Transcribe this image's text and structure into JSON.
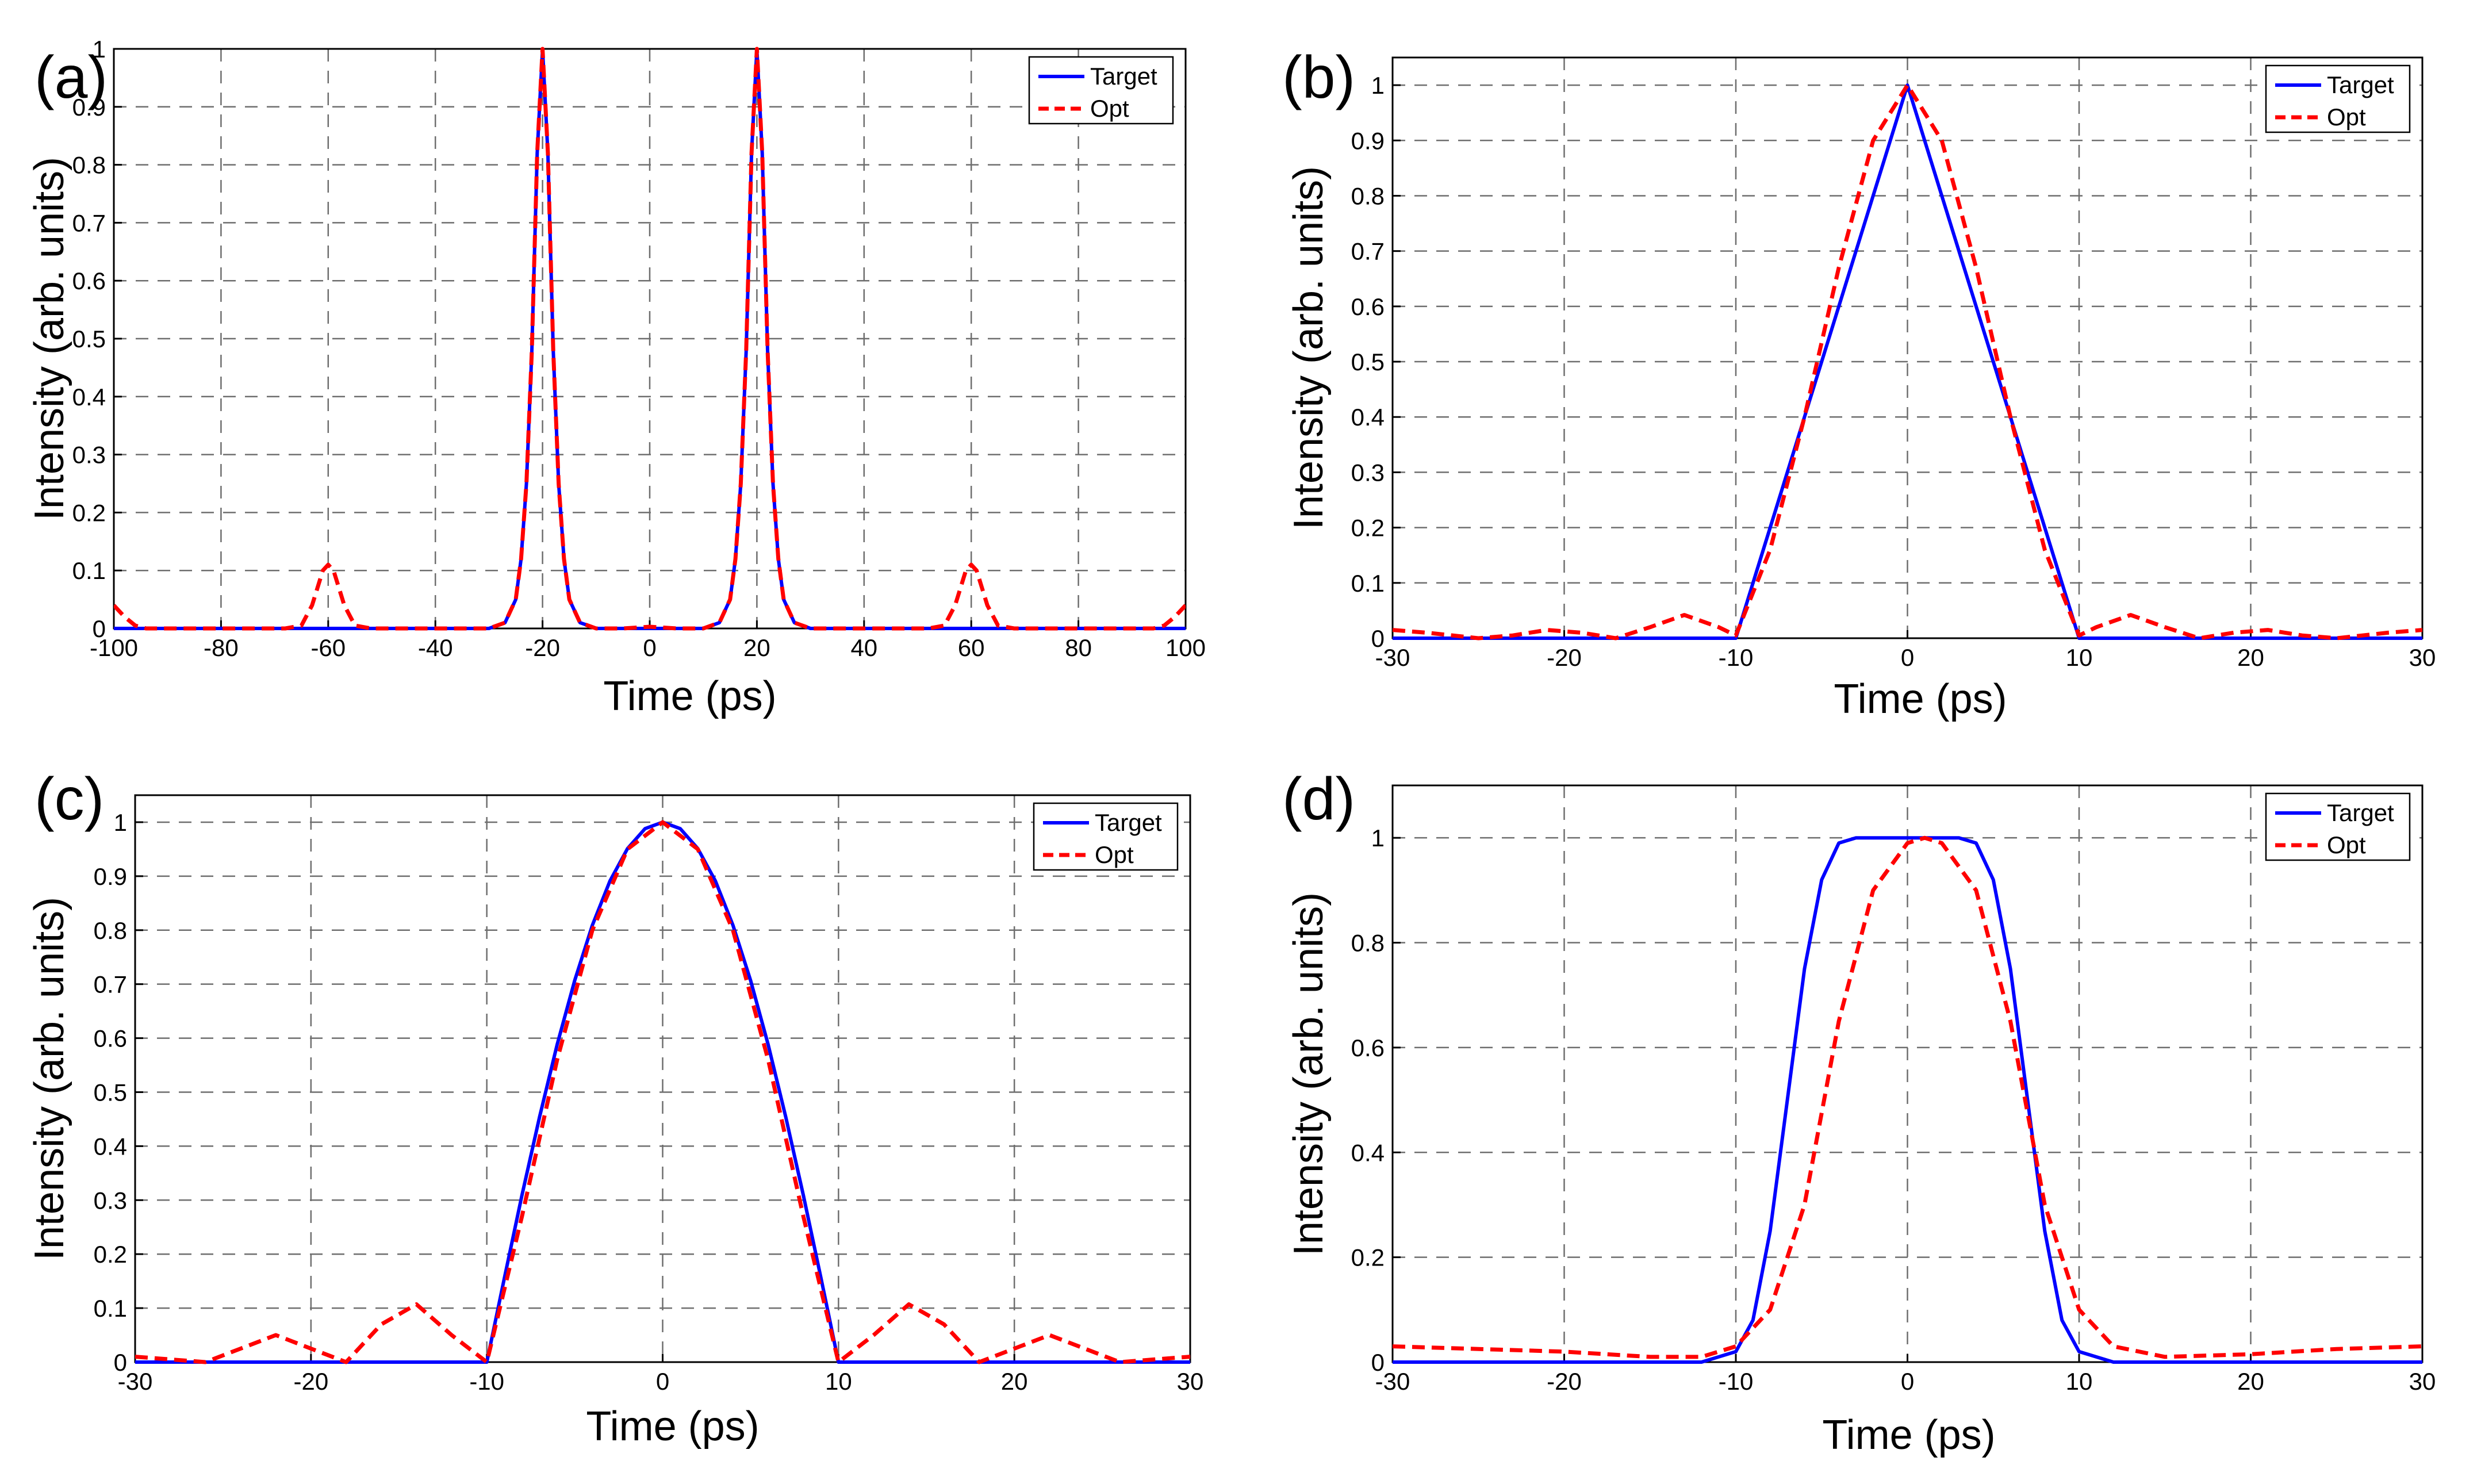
{
  "chart_data": [
    {
      "panel_label": "(a)",
      "type": "line",
      "title": "",
      "xlabel": "Time (ps)",
      "ylabel": "Intensity (arb. units)",
      "xlim": [
        -100,
        100
      ],
      "ylim": [
        0,
        1
      ],
      "xticks": [
        -100,
        -80,
        -60,
        -40,
        -20,
        0,
        20,
        40,
        60,
        80,
        100
      ],
      "xtick_labels": [
        "-100",
        "-80",
        "-60",
        "-40",
        "-20",
        "0",
        "20",
        "40",
        "60",
        "80",
        "100"
      ],
      "yticks": [
        0,
        0.1,
        0.2,
        0.3,
        0.4,
        0.5,
        0.6,
        0.7,
        0.8,
        0.9,
        1
      ],
      "ytick_labels": [
        "0",
        "0.1",
        "0.2",
        "0.3",
        "0.4",
        "0.5",
        "0.6",
        "0.7",
        "0.8",
        "0.9",
        "1"
      ],
      "grid": true,
      "legend_position": "top-right",
      "series": [
        {
          "name": "Target",
          "color": "#0000ff",
          "style": "solid",
          "x": [
            -100,
            -30,
            -27,
            -25,
            -24,
            -23,
            -22,
            -21,
            -20,
            -19,
            -18,
            -17,
            -16,
            -15,
            -13,
            -10,
            10,
            13,
            15,
            16,
            17,
            18,
            19,
            20,
            21,
            22,
            23,
            24,
            25,
            27,
            30,
            100
          ],
          "y": [
            0,
            0,
            0.01,
            0.05,
            0.12,
            0.25,
            0.48,
            0.82,
            1,
            0.82,
            0.48,
            0.25,
            0.12,
            0.05,
            0.01,
            0,
            0,
            0.01,
            0.05,
            0.12,
            0.25,
            0.48,
            0.82,
            1,
            0.82,
            0.48,
            0.25,
            0.12,
            0.05,
            0.01,
            0,
            0
          ]
        },
        {
          "name": "Opt",
          "color": "#ff0000",
          "style": "dashed",
          "x": [
            -100,
            -98,
            -96,
            -94,
            -90,
            -80,
            -68,
            -65,
            -63,
            -61,
            -60,
            -59,
            -57,
            -55,
            -52,
            -45,
            -30,
            -27,
            -25,
            -24,
            -23,
            -22,
            -21,
            -20,
            -19,
            -18,
            -17,
            -16,
            -15,
            -13,
            -10,
            -5,
            0,
            5,
            10,
            13,
            15,
            16,
            17,
            18,
            19,
            20,
            21,
            22,
            23,
            24,
            25,
            27,
            30,
            45,
            52,
            55,
            57,
            59,
            60,
            61,
            63,
            65,
            68,
            80,
            90,
            94,
            96,
            98,
            100
          ],
          "y": [
            0.04,
            0.02,
            0.005,
            0,
            0,
            0,
            0,
            0.005,
            0.04,
            0.1,
            0.11,
            0.1,
            0.04,
            0.005,
            0,
            0,
            0,
            0.01,
            0.05,
            0.12,
            0.25,
            0.48,
            0.82,
            1,
            0.82,
            0.48,
            0.25,
            0.12,
            0.05,
            0.01,
            0,
            0,
            0.003,
            0,
            0,
            0.01,
            0.05,
            0.12,
            0.25,
            0.48,
            0.82,
            1,
            0.82,
            0.48,
            0.25,
            0.12,
            0.05,
            0.01,
            0,
            0,
            0,
            0.005,
            0.04,
            0.1,
            0.11,
            0.1,
            0.04,
            0.005,
            0,
            0,
            0,
            0,
            0.005,
            0.02,
            0.04
          ]
        }
      ]
    },
    {
      "panel_label": "(b)",
      "type": "line",
      "title": "",
      "xlabel": "Time (ps)",
      "ylabel": "Intensity (arb. units)",
      "xlim": [
        -30,
        30
      ],
      "ylim": [
        0,
        1.05
      ],
      "xticks": [
        -30,
        -20,
        -10,
        0,
        10,
        20,
        30
      ],
      "xtick_labels": [
        "-30",
        "-20",
        "-10",
        "0",
        "10",
        "20",
        "30"
      ],
      "yticks": [
        0,
        0.1,
        0.2,
        0.3,
        0.4,
        0.5,
        0.6,
        0.7,
        0.8,
        0.9,
        1
      ],
      "ytick_labels": [
        "0",
        "0.1",
        "0.2",
        "0.3",
        "0.4",
        "0.5",
        "0.6",
        "0.7",
        "0.8",
        "0.9",
        "1"
      ],
      "grid": true,
      "legend_position": "top-right",
      "series": [
        {
          "name": "Target",
          "color": "#0000ff",
          "style": "solid",
          "x": [
            -30,
            -10,
            0,
            10,
            30
          ],
          "y": [
            0,
            0,
            1,
            0,
            0
          ]
        },
        {
          "name": "Opt",
          "color": "#ff0000",
          "style": "dashed",
          "x": [
            -30,
            -28,
            -25,
            -23,
            -21,
            -19,
            -17,
            -15,
            -13,
            -11,
            -10,
            -8,
            -6,
            -4,
            -2,
            0,
            2,
            4,
            6,
            8,
            10,
            11,
            13,
            15,
            17,
            19,
            21,
            23,
            25,
            28,
            30
          ],
          "y": [
            0.015,
            0.01,
            0,
            0.005,
            0.015,
            0.01,
            0,
            0.02,
            0.042,
            0.02,
            0.005,
            0.16,
            0.4,
            0.67,
            0.9,
            1,
            0.9,
            0.67,
            0.4,
            0.16,
            0.005,
            0.02,
            0.042,
            0.02,
            0,
            0.01,
            0.015,
            0.005,
            0,
            0.01,
            0.015
          ]
        }
      ]
    },
    {
      "panel_label": "(c)",
      "type": "line",
      "title": "",
      "xlabel": "Time (ps)",
      "ylabel": "Intensity (arb. units)",
      "xlim": [
        -30,
        30
      ],
      "ylim": [
        0,
        1.05
      ],
      "xticks": [
        -30,
        -20,
        -10,
        0,
        10,
        20,
        30
      ],
      "xtick_labels": [
        "-30",
        "-20",
        "-10",
        "0",
        "10",
        "20",
        "30"
      ],
      "yticks": [
        0,
        0.1,
        0.2,
        0.3,
        0.4,
        0.5,
        0.6,
        0.7,
        0.8,
        0.9,
        1
      ],
      "ytick_labels": [
        "0",
        "0.1",
        "0.2",
        "0.3",
        "0.4",
        "0.5",
        "0.6",
        "0.7",
        "0.8",
        "0.9",
        "1"
      ],
      "grid": true,
      "legend_position": "top-right",
      "series": [
        {
          "name": "Target",
          "color": "#0000ff",
          "style": "solid",
          "x": [
            -30,
            -10,
            -9,
            -8,
            -7,
            -6,
            -5,
            -4,
            -3,
            -2,
            -1,
            0,
            1,
            2,
            3,
            4,
            5,
            6,
            7,
            8,
            9,
            10,
            30
          ],
          "y": [
            0,
            0,
            0.156,
            0.309,
            0.454,
            0.588,
            0.707,
            0.809,
            0.891,
            0.951,
            0.988,
            1,
            0.988,
            0.951,
            0.891,
            0.809,
            0.707,
            0.588,
            0.454,
            0.309,
            0.156,
            0,
            0
          ]
        },
        {
          "name": "Opt",
          "color": "#ff0000",
          "style": "dashed",
          "x": [
            -30,
            -28,
            -26,
            -24,
            -22,
            -20,
            -18,
            -16,
            -14,
            -12,
            -10,
            -8,
            -6,
            -4,
            -2,
            0,
            2,
            4,
            6,
            8,
            10,
            12,
            14,
            16,
            18,
            20,
            22,
            24,
            26,
            28,
            30
          ],
          "y": [
            0.01,
            0.005,
            0,
            0.025,
            0.05,
            0.025,
            0,
            0.07,
            0.107,
            0.05,
            0,
            0.27,
            0.56,
            0.8,
            0.95,
            1,
            0.95,
            0.8,
            0.56,
            0.27,
            0,
            0.05,
            0.107,
            0.07,
            0,
            0.025,
            0.05,
            0.025,
            0,
            0.005,
            0.01
          ]
        }
      ]
    },
    {
      "panel_label": "(d)",
      "type": "line",
      "title": "",
      "xlabel": "Time (ps)",
      "ylabel": "Intensity (arb. units)",
      "xlim": [
        -30,
        30
      ],
      "ylim": [
        0,
        1.1
      ],
      "xticks": [
        -30,
        -20,
        -10,
        0,
        10,
        20,
        30
      ],
      "xtick_labels": [
        "-30",
        "-20",
        "-10",
        "0",
        "10",
        "20",
        "30"
      ],
      "yticks": [
        0,
        0.2,
        0.4,
        0.6,
        0.8,
        1
      ],
      "ytick_labels": [
        "0",
        "0.2",
        "0.4",
        "0.6",
        "0.8",
        "1"
      ],
      "grid": true,
      "legend_position": "top-right",
      "series": [
        {
          "name": "Target",
          "color": "#0000ff",
          "style": "solid",
          "x": [
            -30,
            -12,
            -10,
            -9,
            -8,
            -7,
            -6,
            -5,
            -4,
            -3,
            3,
            4,
            5,
            6,
            7,
            8,
            9,
            10,
            12,
            30
          ],
          "y": [
            0,
            0,
            0.02,
            0.08,
            0.25,
            0.5,
            0.75,
            0.92,
            0.99,
            1,
            1,
            0.99,
            0.92,
            0.75,
            0.5,
            0.25,
            0.08,
            0.02,
            0,
            0
          ]
        },
        {
          "name": "Opt",
          "color": "#ff0000",
          "style": "dashed",
          "x": [
            -30,
            -20,
            -15,
            -12,
            -10,
            -8,
            -6,
            -4,
            -2,
            0,
            1,
            2,
            4,
            6,
            8,
            10,
            12,
            15,
            20,
            25,
            30
          ],
          "y": [
            0.03,
            0.02,
            0.01,
            0.01,
            0.03,
            0.1,
            0.3,
            0.65,
            0.9,
            0.99,
            1,
            0.99,
            0.9,
            0.65,
            0.3,
            0.1,
            0.03,
            0.01,
            0.015,
            0.025,
            0.03
          ]
        }
      ]
    }
  ]
}
